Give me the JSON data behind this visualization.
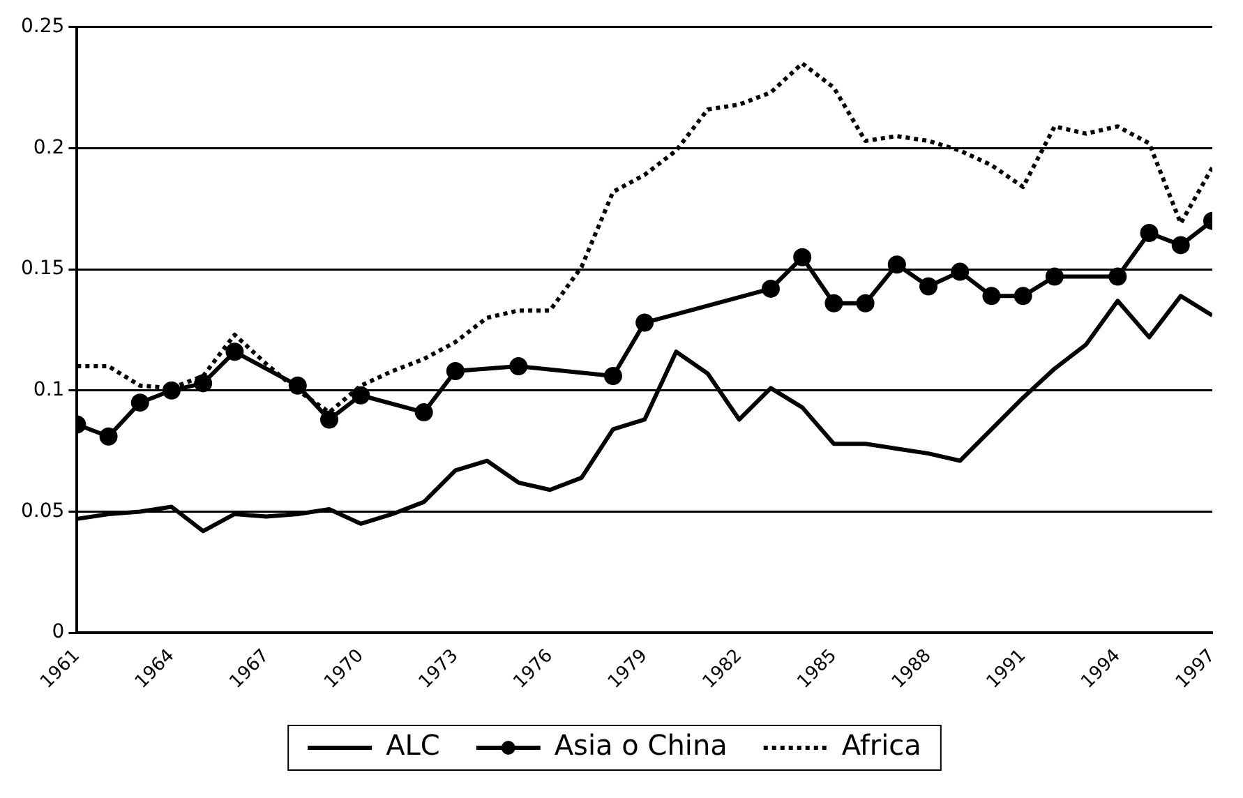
{
  "chart_data": {
    "type": "line",
    "xlim": [
      1961,
      1997
    ],
    "xticks": [
      1961,
      1964,
      1967,
      1970,
      1973,
      1976,
      1979,
      1982,
      1985,
      1988,
      1991,
      1994,
      1997
    ],
    "ylim": [
      0,
      0.25
    ],
    "yticks": [
      0,
      0.05,
      0.1,
      0.15,
      0.2,
      0.25
    ],
    "grid": "y",
    "legend": "bottom",
    "series": [
      {
        "name": "ALC",
        "color": "#000000",
        "marker": "none",
        "line_style": "solid",
        "x": [
          1961,
          1962,
          1963,
          1964,
          1965,
          1966,
          1967,
          1968,
          1969,
          1970,
          1971,
          1972,
          1973,
          1974,
          1975,
          1976,
          1977,
          1978,
          1979,
          1980,
          1981,
          1982,
          1983,
          1984,
          1985,
          1986,
          1987,
          1988,
          1989,
          1990,
          1991,
          1992,
          1993,
          1994,
          1995,
          1996,
          1997
        ],
        "values": [
          0.047,
          0.049,
          0.05,
          0.052,
          0.042,
          0.049,
          0.048,
          0.049,
          0.051,
          0.045,
          0.049,
          0.054,
          0.067,
          0.071,
          0.062,
          0.059,
          0.064,
          0.084,
          0.088,
          0.116,
          0.107,
          0.088,
          0.101,
          0.093,
          0.078,
          0.078,
          0.076,
          0.074,
          0.071,
          0.084,
          0.097,
          0.109,
          0.119,
          0.137,
          0.122,
          0.139,
          0.131
        ]
      },
      {
        "name": "Asia o China",
        "color": "#000000",
        "marker": "circle",
        "line_style": "solid",
        "x": [
          1961,
          1962,
          1963,
          1964,
          1965,
          1966,
          1968,
          1969,
          1970,
          1972,
          1973,
          1975,
          1978,
          1979,
          1983,
          1984,
          1985,
          1986,
          1987,
          1988,
          1989,
          1990,
          1991,
          1992,
          1994,
          1995,
          1996,
          1997
        ],
        "values": [
          0.086,
          0.081,
          0.095,
          0.1,
          0.103,
          0.116,
          0.102,
          0.088,
          0.098,
          0.091,
          0.108,
          0.11,
          0.106,
          0.128,
          0.142,
          0.155,
          0.136,
          0.136,
          0.152,
          0.143,
          0.149,
          0.139,
          0.139,
          0.147,
          0.147,
          0.165,
          0.16,
          0.17
        ]
      },
      {
        "name": "Africa",
        "color": "#000000",
        "marker": "none",
        "line_style": "dotted",
        "x": [
          1961,
          1962,
          1963,
          1964,
          1965,
          1966,
          1967,
          1968,
          1969,
          1970,
          1971,
          1972,
          1973,
          1974,
          1975,
          1976,
          1977,
          1978,
          1979,
          1980,
          1981,
          1982,
          1983,
          1984,
          1985,
          1986,
          1987,
          1988,
          1989,
          1990,
          1991,
          1992,
          1993,
          1994,
          1995,
          1996,
          1997
        ],
        "values": [
          0.11,
          0.11,
          0.102,
          0.101,
          0.106,
          0.123,
          0.111,
          0.1,
          0.091,
          0.102,
          0.108,
          0.113,
          0.12,
          0.13,
          0.133,
          0.133,
          0.151,
          0.182,
          0.189,
          0.199,
          0.216,
          0.218,
          0.223,
          0.235,
          0.225,
          0.203,
          0.205,
          0.203,
          0.199,
          0.193,
          0.184,
          0.209,
          0.206,
          0.209,
          0.202,
          0.169,
          0.192
        ]
      }
    ]
  }
}
